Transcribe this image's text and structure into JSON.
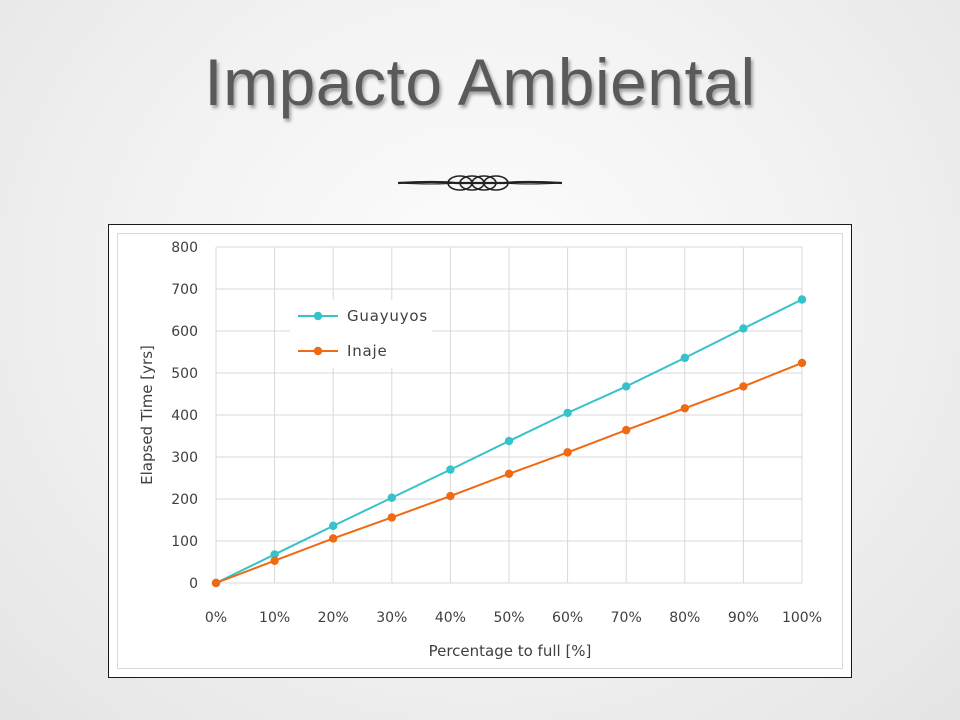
{
  "slide": {
    "title": "Impacto Ambiental"
  },
  "chart_data": {
    "type": "line",
    "categories": [
      "0%",
      "10%",
      "20%",
      "30%",
      "40%",
      "50%",
      "60%",
      "70%",
      "80%",
      "90%",
      "100%"
    ],
    "x": [
      0,
      10,
      20,
      30,
      40,
      50,
      60,
      70,
      80,
      90,
      100
    ],
    "series": [
      {
        "name": "Guayuyos",
        "color": "#36c2c9",
        "values": [
          0,
          68,
          136,
          203,
          270,
          338,
          405,
          468,
          536,
          606,
          675
        ]
      },
      {
        "name": "Inaje",
        "color": "#ef6a12",
        "values": [
          0,
          53,
          106,
          156,
          207,
          260,
          311,
          364,
          416,
          468,
          524
        ]
      }
    ],
    "title": "",
    "xlabel": "Percentage to full [%]",
    "ylabel": "Elapsed Time [yrs]",
    "ylim": [
      0,
      800
    ],
    "yticks": [
      0,
      100,
      200,
      300,
      400,
      500,
      600,
      700,
      800
    ],
    "grid": true,
    "legend_position": "top-left"
  }
}
